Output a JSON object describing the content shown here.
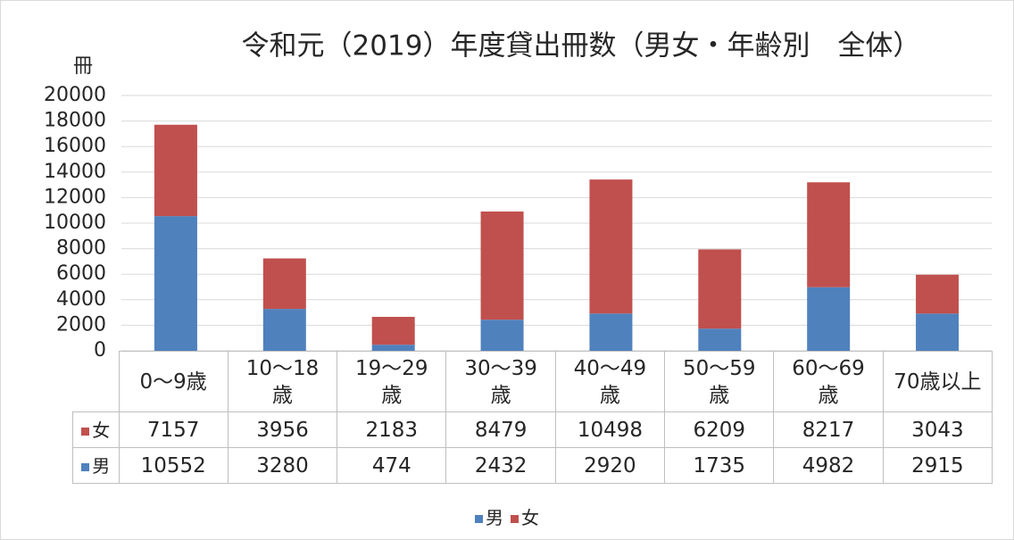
{
  "chart_data": {
    "type": "stacked_bar",
    "title": "令和元（2019）年度貸出冊数（男女・年齢別　全体）",
    "y_label": "冊",
    "categories": [
      "0～9歳",
      "10～18歳",
      "19～29歳",
      "30～39歳",
      "40～49歳",
      "50～59歳",
      "60～69歳",
      "70歳以上"
    ],
    "series": [
      {
        "name": "男",
        "color": "#4f81bd",
        "values": [
          10552,
          3280,
          474,
          2432,
          2920,
          1735,
          4982,
          2915
        ]
      },
      {
        "name": "女",
        "color": "#c0504d",
        "values": [
          7157,
          3956,
          2183,
          8479,
          10498,
          6209,
          8217,
          3043
        ]
      }
    ],
    "ylim": [
      0,
      20000
    ],
    "yticks": [
      0,
      2000,
      4000,
      6000,
      8000,
      10000,
      12000,
      14000,
      16000,
      18000,
      20000
    ],
    "grid": true,
    "legend": "bottom"
  }
}
